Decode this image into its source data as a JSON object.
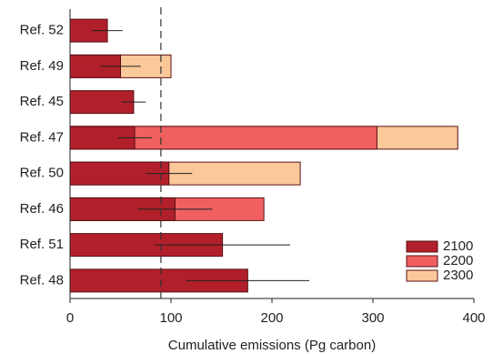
{
  "chart_data": {
    "type": "bar",
    "orientation": "horizontal",
    "x_label": "Cumulative emissions (Pg carbon)",
    "categories": [
      "Ref. 52",
      "Ref. 49",
      "Ref. 45",
      "Ref. 47",
      "Ref. 50",
      "Ref. 46",
      "Ref. 51",
      "Ref. 48"
    ],
    "series": [
      {
        "name": "2100",
        "color": "#b01f2a",
        "values": [
          37,
          50,
          63,
          64,
          98,
          104,
          151,
          176
        ],
        "errors": [
          15,
          20,
          12,
          17,
          23,
          37,
          67,
          61
        ]
      },
      {
        "name": "2200",
        "color": "#f06060",
        "values": [
          null,
          null,
          null,
          304,
          null,
          192,
          null,
          null
        ]
      },
      {
        "name": "2300",
        "color": "#fbc89a",
        "values": [
          null,
          100,
          null,
          384,
          228,
          null,
          null,
          null
        ]
      }
    ],
    "reference_line": 90,
    "xlim": [
      0,
      400
    ],
    "xticks": [
      0,
      100,
      200,
      300,
      400
    ],
    "legend": "lower right"
  }
}
